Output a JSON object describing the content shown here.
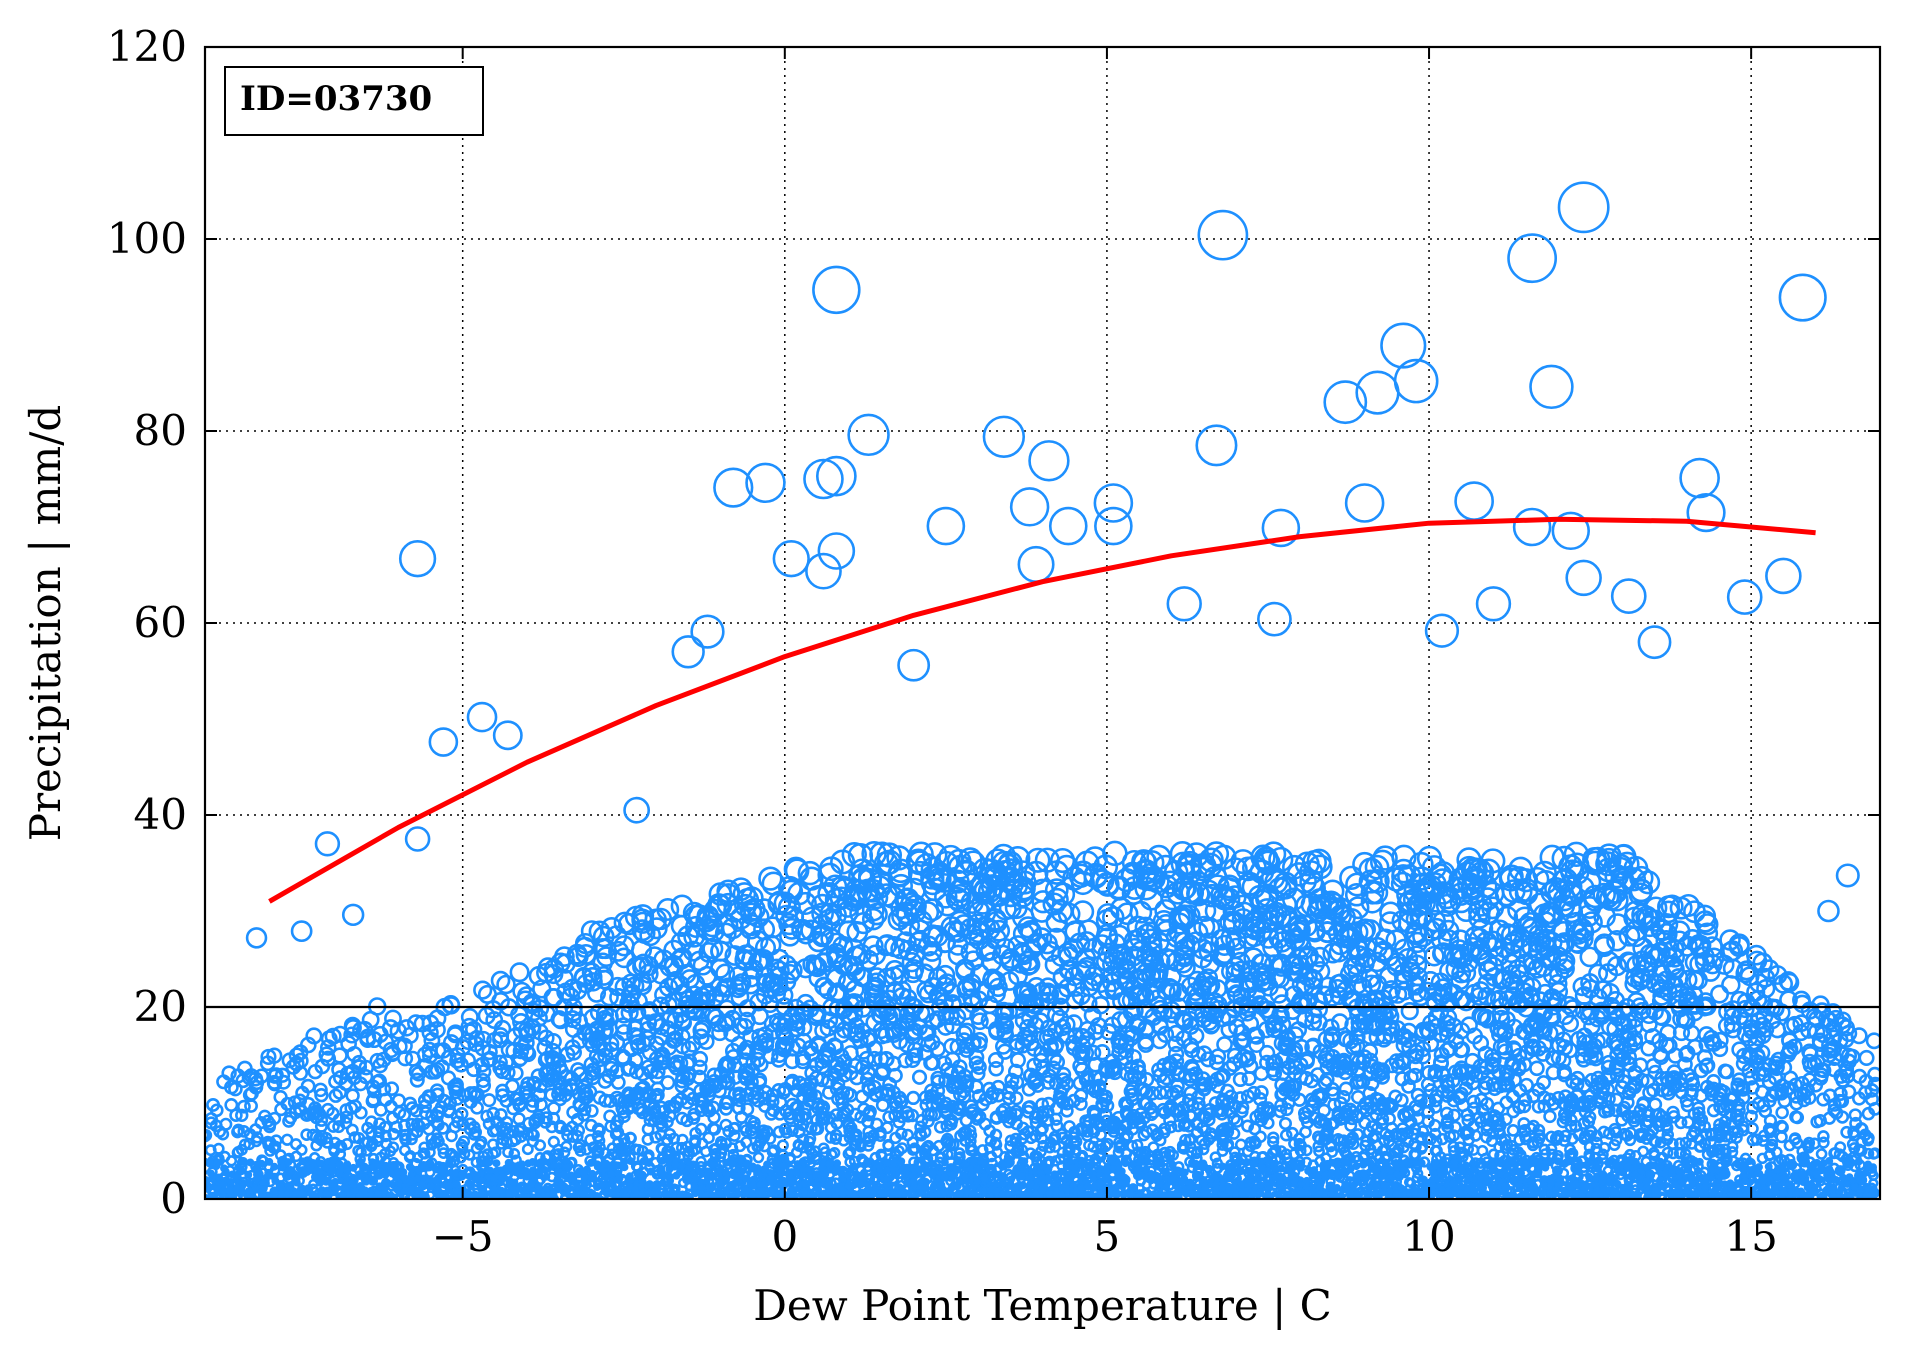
{
  "chart_data": {
    "type": "scatter",
    "title": "",
    "id_label": "ID=03730",
    "xlabel": "Dew Point Temperature | C",
    "ylabel": "Precipitation | mm/d",
    "xlim": [
      -9,
      17
    ],
    "ylim": [
      0,
      120
    ],
    "x_ticks": [
      -5,
      0,
      5,
      10,
      15
    ],
    "x_tick_labels": [
      "−5",
      "0",
      "5",
      "10",
      "15"
    ],
    "y_ticks": [
      0,
      20,
      40,
      60,
      80,
      100,
      120
    ],
    "y_tick_labels": [
      "0",
      "20",
      "40",
      "60",
      "80",
      "100",
      "120"
    ],
    "grid": true,
    "threshold_line": {
      "y": 20
    },
    "colors": {
      "points": "#1e90ff",
      "fit": "#ff0000",
      "threshold": "#000000"
    },
    "series": [
      {
        "type": "scatter",
        "size_encoding": "marker size proportional to precipitation",
        "x": [
          -5.7,
          0.8,
          6.8,
          12.4,
          11.6,
          15.8,
          9.6,
          9.8,
          11.9,
          9.2,
          8.7,
          3.4,
          1.3,
          0.8,
          0.6,
          -0.8,
          -0.3,
          4.1,
          3.8,
          11.6,
          14.2,
          14.3,
          12.2,
          10.7,
          5.1,
          5.1,
          4.4,
          2.5,
          0.8,
          0.1,
          0.6,
          -4.3,
          -4.7,
          -5.3,
          -5.7,
          -7.1,
          -6.7,
          -2.3,
          -1.5,
          -1.2,
          2.0,
          3.9,
          6.2,
          7.6,
          10.2,
          13.1,
          15.5,
          14.9,
          13.5,
          6.7,
          7.7,
          9.0,
          11.0,
          12.4,
          16.5,
          16.2,
          -8.2,
          -7.5
        ],
        "y": [
          66.7,
          94.7,
          100.4,
          103.3,
          98.0,
          93.9,
          88.9,
          85.2,
          84.6,
          84.0,
          83.0,
          79.4,
          79.6,
          75.3,
          75.0,
          74.1,
          74.6,
          76.9,
          72.1,
          70.0,
          75.1,
          71.5,
          69.6,
          72.7,
          72.5,
          70.1,
          70.1,
          70.1,
          67.5,
          66.7,
          65.4,
          48.3,
          50.2,
          47.6,
          37.5,
          37.0,
          29.6,
          40.5,
          57.0,
          59.1,
          55.6,
          66.1,
          62.0,
          60.4,
          59.2,
          62.8,
          64.9,
          62.7,
          58.0,
          78.5,
          69.9,
          72.5,
          62.0,
          64.7,
          33.7,
          30.0,
          27.2,
          27.9
        ]
      },
      {
        "type": "line",
        "name": "",
        "x": [
          -8,
          -6,
          -4,
          -2,
          0,
          2,
          4,
          6,
          8,
          10,
          12,
          14,
          16
        ],
        "y": [
          31.0,
          38.7,
          45.5,
          51.4,
          56.5,
          60.8,
          64.3,
          67.0,
          69.0,
          70.4,
          70.8,
          70.6,
          69.4
        ]
      }
    ]
  }
}
